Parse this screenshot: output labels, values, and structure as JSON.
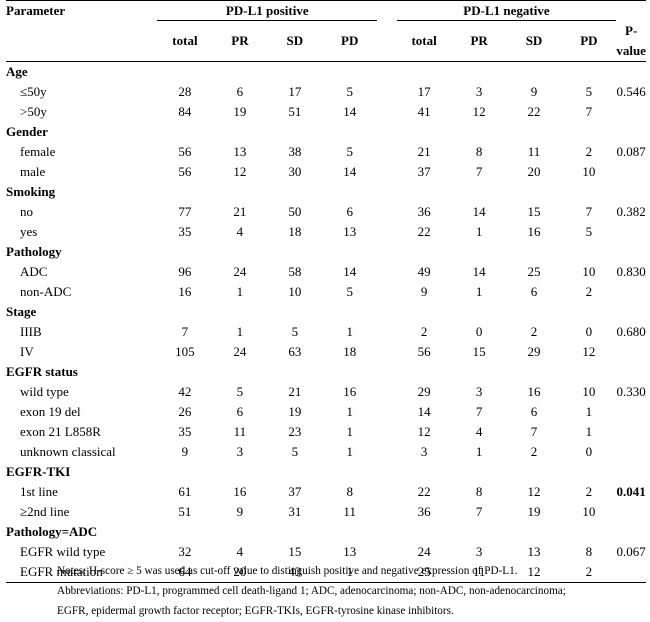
{
  "header": {
    "parameter": "Parameter",
    "group_pos": "PD-L1 positive",
    "group_neg": "PD-L1 negative",
    "cols": [
      "total",
      "PR",
      "SD",
      "PD",
      "total",
      "PR",
      "SD",
      "PD",
      "P-value"
    ]
  },
  "sections": [
    {
      "title": "Age",
      "rows": [
        {
          "label": "≤50y",
          "v": [
            "28",
            "6",
            "17",
            "5",
            "17",
            "3",
            "9",
            "5"
          ],
          "p": "0.546"
        },
        {
          "label": ">50y",
          "v": [
            "84",
            "19",
            "51",
            "14",
            "41",
            "12",
            "22",
            "7"
          ],
          "p": ""
        }
      ]
    },
    {
      "title": "Gender",
      "rows": [
        {
          "label": "female",
          "v": [
            "56",
            "13",
            "38",
            "5",
            "21",
            "8",
            "11",
            "2"
          ],
          "p": "0.087"
        },
        {
          "label": "male",
          "v": [
            "56",
            "12",
            "30",
            "14",
            "37",
            "7",
            "20",
            "10"
          ],
          "p": ""
        }
      ]
    },
    {
      "title": "Smoking",
      "rows": [
        {
          "label": "no",
          "v": [
            "77",
            "21",
            "50",
            "6",
            "36",
            "14",
            "15",
            "7"
          ],
          "p": "0.382"
        },
        {
          "label": "yes",
          "v": [
            "35",
            "4",
            "18",
            "13",
            "22",
            "1",
            "16",
            "5"
          ],
          "p": ""
        }
      ]
    },
    {
      "title": "Pathology",
      "rows": [
        {
          "label": "ADC",
          "v": [
            "96",
            "24",
            "58",
            "14",
            "49",
            "14",
            "25",
            "10"
          ],
          "p": "0.830"
        },
        {
          "label": "non-ADC",
          "v": [
            "16",
            "1",
            "10",
            "5",
            "9",
            "1",
            "6",
            "2"
          ],
          "p": ""
        }
      ]
    },
    {
      "title": "Stage",
      "rows": [
        {
          "label": "IIIB",
          "v": [
            "7",
            "1",
            "5",
            "1",
            "2",
            "0",
            "2",
            "0"
          ],
          "p": "0.680"
        },
        {
          "label": "IV",
          "v": [
            "105",
            "24",
            "63",
            "18",
            "56",
            "15",
            "29",
            "12"
          ],
          "p": ""
        }
      ]
    },
    {
      "title": "EGFR status",
      "rows": [
        {
          "label": "wild type",
          "v": [
            "42",
            "5",
            "21",
            "16",
            "29",
            "3",
            "16",
            "10"
          ],
          "p": "0.330"
        },
        {
          "label": "exon 19 del",
          "v": [
            "26",
            "6",
            "19",
            "1",
            "14",
            "7",
            "6",
            "1"
          ],
          "p": ""
        },
        {
          "label": "exon 21 L858R",
          "v": [
            "35",
            "11",
            "23",
            "1",
            "12",
            "4",
            "7",
            "1"
          ],
          "p": ""
        },
        {
          "label": "unknown classical",
          "v": [
            "9",
            "3",
            "5",
            "1",
            "3",
            "1",
            "2",
            "0"
          ],
          "p": ""
        }
      ]
    },
    {
      "title": "EGFR-TKI",
      "rows": [
        {
          "label": "1st line",
          "v": [
            "61",
            "16",
            "37",
            "8",
            "22",
            "8",
            "12",
            "2"
          ],
          "p": "0.041",
          "p_bold": true
        },
        {
          "label": "≥2nd line",
          "v": [
            "51",
            "9",
            "31",
            "11",
            "36",
            "7",
            "19",
            "10"
          ],
          "p": ""
        }
      ]
    },
    {
      "title": "Pathology=ADC",
      "rows": [
        {
          "label": "EGFR wild type",
          "v": [
            "32",
            "4",
            "15",
            "13",
            "24",
            "3",
            "13",
            "8"
          ],
          "p": "0.067"
        },
        {
          "label": "EGFR mutation",
          "v": [
            "64",
            "20",
            "43",
            "1",
            "25",
            "11",
            "12",
            "2"
          ],
          "p": ""
        }
      ]
    }
  ],
  "notes": [
    "Notes: H-score ≥ 5 was used as cut-off value to distinguish positive and negative expression of PD-L1.",
    "Abbreviations: PD-L1, programmed cell death-ligand 1; ADC, adenocarcinoma; non-ADC, non-adenocarcinoma;",
    "EGFR, epidermal growth factor receptor; EGFR-TKIs, EGFR-tyrosine kinase inhibitors."
  ]
}
